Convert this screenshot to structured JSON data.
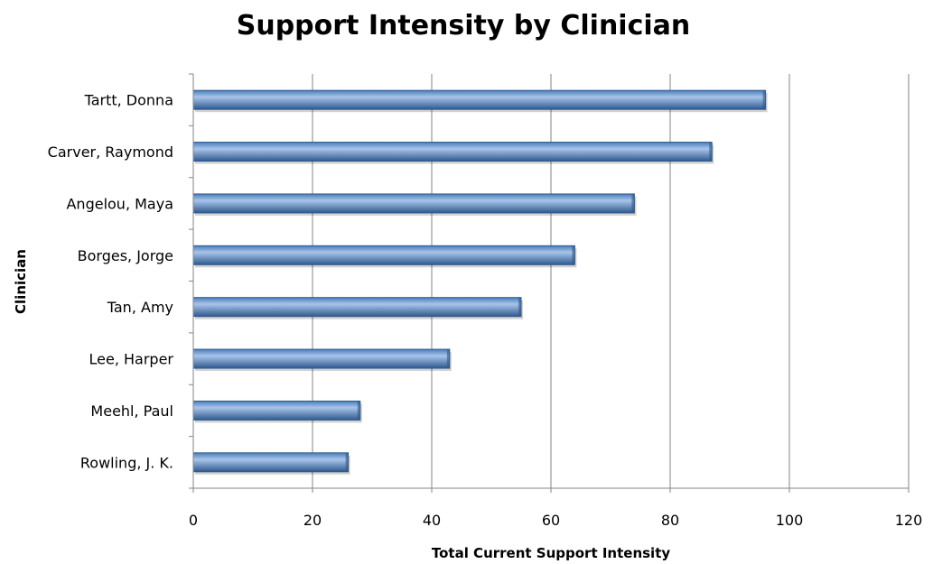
{
  "chart_data": {
    "type": "bar",
    "orientation": "horizontal",
    "title": "Support Intensity by Clinician",
    "xlabel": "Total Current Support  Intensity",
    "ylabel": "Clinician",
    "categories": [
      "Tartt, Donna",
      "Carver, Raymond",
      "Angelou, Maya",
      "Borges, Jorge",
      "Tan, Amy",
      "Lee, Harper",
      "Meehl, Paul",
      "Rowling, J. K."
    ],
    "values": [
      96,
      87,
      74,
      64,
      55,
      43,
      28,
      26
    ],
    "xlim": [
      0,
      120
    ],
    "xticks": [
      "0",
      "20",
      "40",
      "60",
      "80",
      "100",
      "120"
    ],
    "grid": "vertical",
    "legend": "none",
    "bar_color": "#4A7EBB",
    "bar_highlight": "#A9C4EA",
    "bar_shadow": "#2E5A8E",
    "gridline_color": "#868686"
  }
}
